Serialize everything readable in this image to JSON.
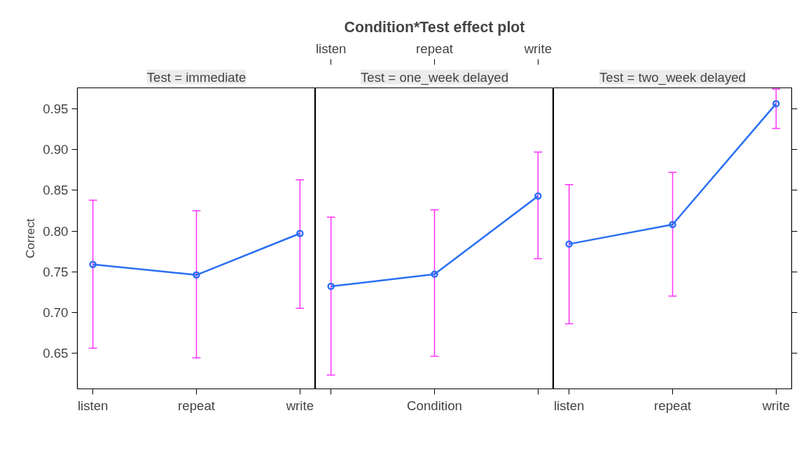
{
  "chart_data": [
    {
      "type": "line",
      "subtitle": "Test = immediate",
      "ylabel": "Correct",
      "categories": [
        "listen",
        "repeat",
        "write"
      ],
      "series": [
        {
          "color": "#2a6ff5",
          "values": [
            0.759,
            0.746,
            0.797
          ],
          "errors": [
            [
              0.656,
              0.838
            ],
            [
              0.644,
              0.825
            ],
            [
              0.705,
              0.863
            ]
          ]
        }
      ],
      "ylim": [
        0.606,
        0.976
      ],
      "yticks": [
        {
          "value": 0.65,
          "label": "0.65"
        },
        {
          "value": 0.7,
          "label": "0.70"
        },
        {
          "value": 0.75,
          "label": "0.75"
        },
        {
          "value": 0.8,
          "label": "0.80"
        },
        {
          "value": 0.85,
          "label": "0.85"
        },
        {
          "value": 0.9,
          "label": "0.90"
        },
        {
          "value": 0.95,
          "label": "0.95"
        }
      ],
      "marker": "circle"
    },
    {
      "type": "line",
      "title": "Condition*Test effect plot",
      "subtitle": "Test = one_week delayed",
      "xlabel": "Condition",
      "categories": [
        "listen",
        "repeat",
        "write"
      ],
      "series": [
        {
          "color": "#2a6ff5",
          "values": [
            0.732,
            0.747,
            0.843
          ],
          "errors": [
            [
              0.623,
              0.817
            ],
            [
              0.646,
              0.826
            ],
            [
              0.766,
              0.897
            ]
          ]
        }
      ],
      "ylim": [
        0.606,
        0.976
      ],
      "marker": "circle",
      "tick_labels": "x"
    },
    {
      "type": "line",
      "subtitle": "Test = two_week delayed",
      "categories": [
        "listen",
        "repeat",
        "write"
      ],
      "series": [
        {
          "color": "#2a6ff5",
          "values": [
            0.784,
            0.808,
            0.9565
          ],
          "errors": [
            [
              0.686,
              0.857
            ],
            [
              0.72,
              0.872
            ],
            [
              0.926,
              0.9744
            ]
          ]
        }
      ],
      "ylim": [
        0.606,
        0.976
      ],
      "yticks": [
        {
          "value": 0.65,
          "label": null
        },
        {
          "value": 0.7,
          "label": null
        },
        {
          "value": 0.75,
          "label": null
        },
        {
          "value": 0.8,
          "label": null
        },
        {
          "value": 0.85,
          "label": null
        },
        {
          "value": 0.9,
          "label": null
        },
        {
          "value": 0.95,
          "label": null
        }
      ],
      "marker": "circle",
      "tick_labels": "x"
    }
  ]
}
